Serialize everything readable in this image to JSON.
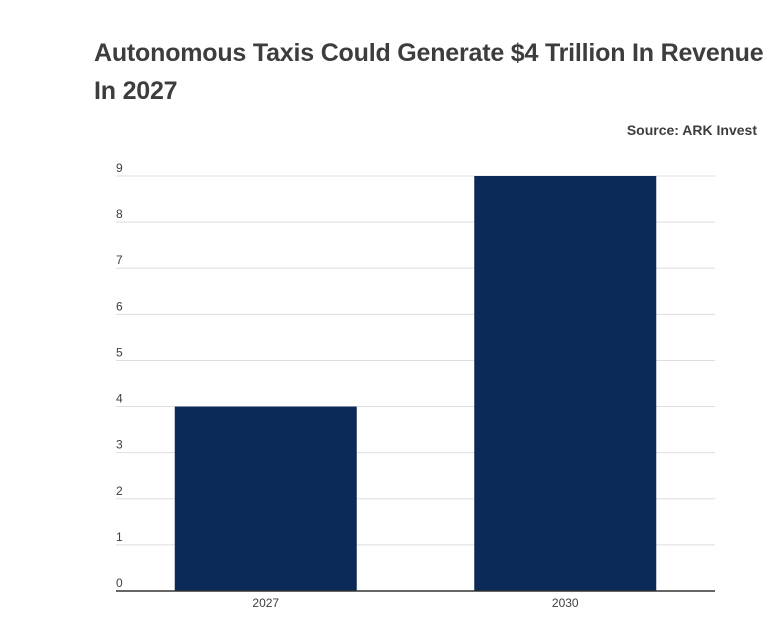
{
  "chart_data": {
    "type": "bar",
    "title": "Autonomous Taxis Could Generate $4 Trillion In Revenue In 2027",
    "source": "Source: ARK Invest",
    "categories": [
      "2027",
      "2030"
    ],
    "values": [
      4,
      9
    ],
    "ylim": [
      0,
      9
    ],
    "yticks": [
      "0",
      "1",
      "2",
      "3",
      "4",
      "5",
      "6",
      "7",
      "8",
      "9"
    ],
    "bar_color": "#0b2a57",
    "grid": true,
    "xlabel": "",
    "ylabel": ""
  }
}
